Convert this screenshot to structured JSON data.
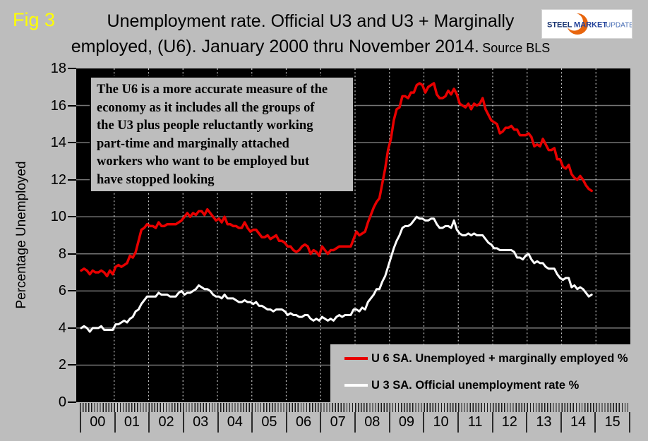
{
  "figure_label": "Fig 3",
  "header": {
    "title_line1": "Unemployment rate. Official U3 and U3 + Marginally",
    "title_line2": "employed, (U6). January 2000 thru November 2014.",
    "title_source": "Source BLS"
  },
  "logo": {
    "word1": "STEEL",
    "word2": "MARKET",
    "word3": "UPDATE"
  },
  "y_axis_title": "Percentage Unemployed",
  "annotation_text": "The U6 is a more accurate measure of the\neconomy as it includes all the groups of\nthe U3 plus people reluctantly working\npart-time and marginally attached\nworkers who want to be employed but\nhave stopped looking",
  "legend": {
    "items": [
      {
        "label": "U 6 SA. Unemployed + marginally employed %",
        "color": "#e80000"
      },
      {
        "label": "U 3 SA. Official unemployment rate %",
        "color": "#ffffff"
      }
    ]
  },
  "colors": {
    "background": "#bdbdbd",
    "plot_background": "#000000",
    "h_gridline": "#757575",
    "v_gridline": "#c9c9c9",
    "u6_line": "#e80000",
    "u3_line": "#ffffff",
    "fig_label": "#ffff00"
  },
  "chart_data": {
    "type": "line",
    "title": "Unemployment rate. Official U3 and U3 + Marginally employed, (U6). January 2000 thru November 2014.",
    "source": "BLS",
    "xlabel": "",
    "ylabel": "Percentage Unemployed",
    "ylim": [
      0,
      18
    ],
    "y_ticks": [
      0,
      2,
      4,
      6,
      8,
      10,
      12,
      14,
      16,
      18
    ],
    "x_tick_labels": [
      "00",
      "01",
      "02",
      "03",
      "04",
      "05",
      "06",
      "07",
      "08",
      "09",
      "10",
      "11",
      "12",
      "13",
      "14",
      "15"
    ],
    "x_start": "2000-01",
    "x_end": "2014-11",
    "x_frequency": "monthly",
    "grid": {
      "horizontal": "solid",
      "vertical": "dotted-yearly"
    },
    "legend_position": "bottom-right-inside",
    "series": [
      {
        "name": "U 6 SA. Unemployed + marginally employed %",
        "color": "#e80000",
        "values": [
          7.1,
          7.2,
          7.1,
          6.9,
          7.1,
          7.0,
          7.0,
          7.1,
          7.0,
          6.8,
          7.1,
          6.9,
          7.3,
          7.4,
          7.3,
          7.4,
          7.5,
          7.9,
          7.8,
          8.1,
          8.7,
          9.3,
          9.4,
          9.6,
          9.5,
          9.5,
          9.4,
          9.7,
          9.5,
          9.5,
          9.6,
          9.6,
          9.6,
          9.6,
          9.7,
          9.8,
          10.0,
          10.2,
          10.0,
          10.2,
          10.1,
          10.3,
          10.3,
          10.1,
          10.4,
          10.2,
          10.0,
          9.8,
          9.9,
          9.7,
          10.0,
          9.6,
          9.6,
          9.5,
          9.5,
          9.4,
          9.4,
          9.7,
          9.4,
          9.2,
          9.3,
          9.3,
          9.1,
          8.9,
          8.9,
          9.0,
          8.8,
          8.9,
          9.0,
          8.7,
          8.7,
          8.6,
          8.4,
          8.4,
          8.2,
          8.1,
          8.2,
          8.4,
          8.5,
          8.4,
          8.0,
          8.2,
          8.1,
          7.9,
          8.4,
          8.2,
          8.0,
          8.2,
          8.2,
          8.3,
          8.4,
          8.4,
          8.4,
          8.4,
          8.4,
          8.8,
          9.2,
          9.0,
          9.1,
          9.2,
          9.7,
          10.1,
          10.5,
          10.8,
          11.0,
          11.8,
          12.6,
          13.6,
          14.2,
          15.2,
          15.8,
          15.9,
          16.5,
          16.5,
          16.4,
          16.7,
          16.7,
          17.1,
          17.2,
          17.1,
          16.7,
          17.0,
          17.1,
          17.2,
          16.6,
          16.4,
          16.4,
          16.5,
          16.8,
          16.6,
          16.9,
          16.6,
          16.1,
          16.0,
          15.9,
          16.1,
          15.8,
          16.1,
          16.0,
          16.1,
          16.4,
          15.8,
          15.5,
          15.2,
          15.1,
          15.0,
          14.5,
          14.6,
          14.8,
          14.8,
          14.9,
          14.7,
          14.7,
          14.4,
          14.4,
          14.4,
          14.5,
          14.3,
          13.8,
          13.9,
          13.8,
          14.2,
          13.9,
          13.6,
          13.6,
          13.7,
          13.1,
          13.1,
          12.7,
          12.6,
          12.8,
          12.3,
          12.1,
          12.0,
          12.2,
          12.0,
          11.7,
          11.5,
          11.4
        ]
      },
      {
        "name": "U 3 SA. Official unemployment rate %",
        "color": "#ffffff",
        "values": [
          4.0,
          4.1,
          4.0,
          3.8,
          4.0,
          4.0,
          4.0,
          4.1,
          3.9,
          3.9,
          3.9,
          3.9,
          4.2,
          4.2,
          4.3,
          4.4,
          4.3,
          4.5,
          4.6,
          4.9,
          5.0,
          5.3,
          5.5,
          5.7,
          5.7,
          5.7,
          5.7,
          5.9,
          5.8,
          5.8,
          5.8,
          5.7,
          5.7,
          5.7,
          5.9,
          6.0,
          5.8,
          5.9,
          5.9,
          6.0,
          6.1,
          6.3,
          6.2,
          6.1,
          6.1,
          6.0,
          5.8,
          5.7,
          5.7,
          5.6,
          5.8,
          5.6,
          5.6,
          5.6,
          5.5,
          5.4,
          5.4,
          5.5,
          5.4,
          5.4,
          5.3,
          5.4,
          5.2,
          5.2,
          5.1,
          5.0,
          5.0,
          4.9,
          5.0,
          5.0,
          5.0,
          4.9,
          4.7,
          4.8,
          4.7,
          4.7,
          4.6,
          4.6,
          4.7,
          4.7,
          4.5,
          4.4,
          4.5,
          4.4,
          4.6,
          4.5,
          4.4,
          4.5,
          4.4,
          4.6,
          4.7,
          4.6,
          4.7,
          4.7,
          4.7,
          5.0,
          5.0,
          4.9,
          5.1,
          5.0,
          5.4,
          5.6,
          5.8,
          6.1,
          6.1,
          6.5,
          6.8,
          7.3,
          7.8,
          8.3,
          8.7,
          9.0,
          9.4,
          9.5,
          9.5,
          9.6,
          9.8,
          10.0,
          9.9,
          9.9,
          9.8,
          9.8,
          9.9,
          9.9,
          9.6,
          9.4,
          9.4,
          9.5,
          9.5,
          9.4,
          9.8,
          9.3,
          9.1,
          9.0,
          9.0,
          9.1,
          9.0,
          9.1,
          9.0,
          9.0,
          9.0,
          8.8,
          8.6,
          8.5,
          8.3,
          8.3,
          8.2,
          8.2,
          8.2,
          8.2,
          8.2,
          8.1,
          7.8,
          7.8,
          7.7,
          7.9,
          8.0,
          7.7,
          7.5,
          7.6,
          7.5,
          7.5,
          7.3,
          7.2,
          7.2,
          7.2,
          6.9,
          6.7,
          6.6,
          6.7,
          6.7,
          6.2,
          6.3,
          6.1,
          6.2,
          6.1,
          5.9,
          5.7,
          5.8
        ]
      }
    ]
  }
}
